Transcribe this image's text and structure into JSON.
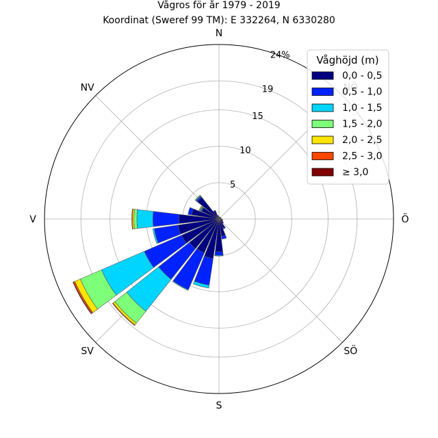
{
  "chart_data": {
    "type": "windrose",
    "title": "Vågros för år 1979 - 2019",
    "subtitle": "Koordinat (Sweref 99 TM): E 332264, N 6330280",
    "direction_labels": [
      "N",
      "NV",
      "V",
      "SV",
      "S",
      "SÖ",
      "Ö",
      "NÖ"
    ],
    "direction_angles": [
      0,
      315,
      270,
      225,
      180,
      135,
      90,
      45
    ],
    "radial_ticks": [
      "5",
      "10",
      "15",
      "19",
      "24%"
    ],
    "radial_tick_values": [
      5,
      10,
      15,
      19,
      24
    ],
    "rmax": 24,
    "sector_width_deg": 15,
    "legend_title": "Våghöjd (m)",
    "legend_placement": "top-right",
    "series": [
      {
        "name": "0,0 - 0,5",
        "color": "#000080"
      },
      {
        "name": "0,5 - 1,0",
        "color": "#0022ff"
      },
      {
        "name": "1,0 - 1,5",
        "color": "#00d5ff"
      },
      {
        "name": "1,5 - 2,0",
        "color": "#7dff7a"
      },
      {
        "name": "2,0 - 2,5",
        "color": "#ffe500"
      },
      {
        "name": "2,5 - 3,0",
        "color": "#ff4700"
      },
      {
        "name": "≥ 3,0",
        "color": "#800000"
      }
    ],
    "sectors": [
      {
        "direction": 0,
        "values": [
          0.3,
          0,
          0,
          0,
          0,
          0,
          0
        ]
      },
      {
        "direction": 15,
        "values": [
          0.3,
          0,
          0,
          0,
          0,
          0,
          0
        ]
      },
      {
        "direction": 30,
        "values": [
          0.3,
          0,
          0,
          0,
          0,
          0,
          0
        ]
      },
      {
        "direction": 45,
        "values": [
          0.3,
          0,
          0,
          0,
          0,
          0,
          0
        ]
      },
      {
        "direction": 60,
        "values": [
          0.3,
          0,
          0,
          0,
          0,
          0,
          0
        ]
      },
      {
        "direction": 75,
        "values": [
          0.3,
          0,
          0,
          0,
          0,
          0,
          0
        ]
      },
      {
        "direction": 90,
        "values": [
          0.4,
          0,
          0,
          0,
          0,
          0,
          0
        ]
      },
      {
        "direction": 105,
        "values": [
          0.5,
          0,
          0,
          0,
          0,
          0,
          0
        ]
      },
      {
        "direction": 120,
        "values": [
          0.6,
          0,
          0,
          0,
          0,
          0,
          0
        ]
      },
      {
        "direction": 135,
        "values": [
          0.8,
          0,
          0,
          0,
          0,
          0,
          0
        ]
      },
      {
        "direction": 150,
        "values": [
          1.3,
          0.2,
          0,
          0,
          0,
          0,
          0
        ]
      },
      {
        "direction": 165,
        "values": [
          2.4,
          0.4,
          0,
          0,
          0,
          0,
          0
        ]
      },
      {
        "direction": 180,
        "values": [
          4.5,
          0.5,
          0.1,
          0,
          0,
          0,
          0
        ]
      },
      {
        "direction": 195,
        "values": [
          5.5,
          3.7,
          0.4,
          0,
          0,
          0,
          0
        ]
      },
      {
        "direction": 210,
        "values": [
          5.1,
          5.5,
          0.1,
          0,
          0,
          0,
          0
        ]
      },
      {
        "direction": 225,
        "values": [
          5.2,
          5.4,
          5.6,
          2.1,
          0.3,
          0.1,
          0
        ]
      },
      {
        "direction": 240,
        "values": [
          5.6,
          5.6,
          6.4,
          3.2,
          0.8,
          0.2,
          0.1
        ]
      },
      {
        "direction": 255,
        "values": [
          5.7,
          3.3,
          0.2,
          0,
          0,
          0,
          0
        ]
      },
      {
        "direction": 270,
        "values": [
          5.5,
          3.6,
          2.2,
          0.4,
          0.2,
          0.1,
          0
        ]
      },
      {
        "direction": 285,
        "values": [
          3.8,
          0.5,
          0,
          0,
          0,
          0,
          0
        ]
      },
      {
        "direction": 300,
        "values": [
          2.6,
          0.1,
          0.1,
          0.1,
          0.1,
          0,
          0
        ]
      },
      {
        "direction": 315,
        "values": [
          3.8,
          0.2,
          0.1,
          0.1,
          0,
          0,
          0
        ]
      },
      {
        "direction": 330,
        "values": [
          1.3,
          0,
          0,
          0,
          0,
          0,
          0
        ]
      },
      {
        "direction": 345,
        "values": [
          0.5,
          0,
          0,
          0,
          0,
          0,
          0
        ]
      }
    ]
  }
}
